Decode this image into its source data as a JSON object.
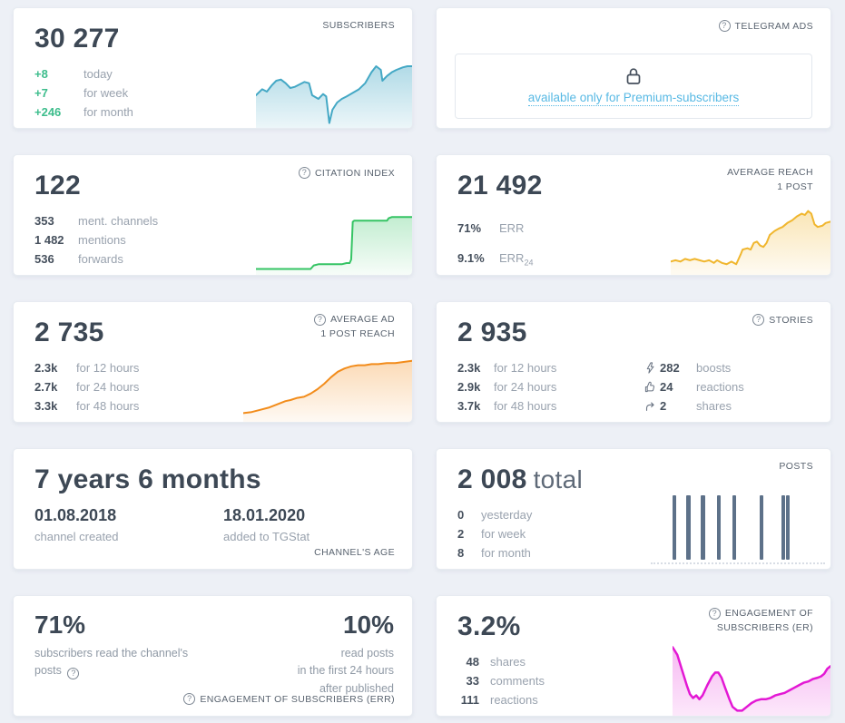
{
  "page": {
    "background": "#edf0f6"
  },
  "colors": {
    "accent_green_text": "#3dbd8c",
    "subscribers_line": "#44a8c5",
    "citation_line": "#35c464",
    "reach_line": "#f0b62e",
    "ad_reach_line": "#f28c1b",
    "er_line": "#e318d4",
    "posts_bar": "#5d7189",
    "link_blue": "#58b9e4"
  },
  "cards": {
    "subscribers": {
      "title": "SUBSCRIBERS",
      "value": "30 277",
      "stats": [
        {
          "value": "+8",
          "label": "today"
        },
        {
          "value": "+7",
          "label": "for week"
        },
        {
          "value": "+246",
          "label": "for month"
        }
      ]
    },
    "telegram_ads": {
      "title": "TELEGRAM ADS",
      "locked_message": "available only for Premium-subscribers"
    },
    "citation_index": {
      "title": "CITATION INDEX",
      "value": "122",
      "stats": [
        {
          "value": "353",
          "label": "ment. channels"
        },
        {
          "value": "1 482",
          "label": "mentions"
        },
        {
          "value": "536",
          "label": "forwards"
        }
      ]
    },
    "average_reach": {
      "title_line1": "AVERAGE REACH",
      "title_line2": "1 POST",
      "value": "21 492",
      "stats": [
        {
          "value": "71%",
          "label": "ERR",
          "label_sub": ""
        },
        {
          "value": "9.1%",
          "label": "ERR",
          "label_sub": "24"
        }
      ]
    },
    "average_ad_reach": {
      "title_line1": "AVERAGE AD",
      "title_line2": "1 POST REACH",
      "value": "2 735",
      "stats": [
        {
          "value": "2.3k",
          "label": "for 12 hours"
        },
        {
          "value": "2.7k",
          "label": "for 24 hours"
        },
        {
          "value": "3.3k",
          "label": "for 48 hours"
        }
      ]
    },
    "stories": {
      "title": "STORIES",
      "value": "2 935",
      "stats": [
        {
          "value": "2.3k",
          "label": "for 12 hours"
        },
        {
          "value": "2.9k",
          "label": "for 24 hours"
        },
        {
          "value": "3.7k",
          "label": "for 48 hours"
        }
      ],
      "engagement": [
        {
          "icon": "boost-icon",
          "value": "282",
          "label": "boosts"
        },
        {
          "icon": "thumbs-up-icon",
          "value": "24",
          "label": "reactions"
        },
        {
          "icon": "share-icon",
          "value": "2",
          "label": "shares"
        }
      ]
    },
    "channel_age": {
      "value": "7 years 6 months",
      "created_date": "01.08.2018",
      "created_label": "channel created",
      "added_date": "18.01.2020",
      "added_label": "added to TGStat",
      "footer": "CHANNEL'S AGE"
    },
    "posts": {
      "title": "POSTS",
      "value": "2 008",
      "value_suffix": "total",
      "stats": [
        {
          "value": "0",
          "label": "yesterday"
        },
        {
          "value": "2",
          "label": "for week"
        },
        {
          "value": "8",
          "label": "for month"
        }
      ]
    },
    "err": {
      "left_value": "71%",
      "left_caption": "subscribers read the channel's posts",
      "right_value": "10%",
      "right_caption_lines": [
        "read posts",
        "in the first 24 hours",
        "after published"
      ],
      "footer": "ENGAGEMENT OF SUBSCRIBERS (ERR)"
    },
    "er": {
      "title_line1": "ENGAGEMENT OF",
      "title_line2": "SUBSCRIBERS (ER)",
      "value": "3.2%",
      "stats": [
        {
          "value": "48",
          "label": "shares"
        },
        {
          "value": "33",
          "label": "comments"
        },
        {
          "value": "111",
          "label": "reactions"
        }
      ]
    }
  },
  "chart_data": [
    {
      "id": "subscribers-trend",
      "type": "area",
      "color": "#44a8c5",
      "stroke_width": 2,
      "fill_opacity_top": 0.42,
      "fill_opacity_bottom": 0.1,
      "ylim": [
        0,
        60
      ],
      "points": [
        [
          0,
          33
        ],
        [
          4,
          28
        ],
        [
          7,
          30
        ],
        [
          10,
          25
        ],
        [
          13,
          21
        ],
        [
          16,
          20
        ],
        [
          19,
          23
        ],
        [
          22,
          27
        ],
        [
          25,
          26
        ],
        [
          28,
          24
        ],
        [
          31,
          22
        ],
        [
          34,
          23
        ],
        [
          36,
          33
        ],
        [
          40,
          36
        ],
        [
          43,
          32
        ],
        [
          45,
          34
        ],
        [
          47,
          56
        ],
        [
          49,
          45
        ],
        [
          52,
          39
        ],
        [
          55,
          36
        ],
        [
          58,
          34
        ],
        [
          62,
          31
        ],
        [
          66,
          28
        ],
        [
          70,
          23
        ],
        [
          74,
          14
        ],
        [
          77,
          9
        ],
        [
          80,
          12
        ],
        [
          81,
          21
        ],
        [
          84,
          17
        ],
        [
          87,
          14
        ],
        [
          90,
          12
        ],
        [
          94,
          10
        ],
        [
          97,
          9
        ],
        [
          100,
          9
        ]
      ]
    },
    {
      "id": "citation-trend",
      "type": "area",
      "color": "#35c464",
      "stroke_width": 2,
      "fill_opacity_top": 0.3,
      "fill_opacity_bottom": 0.04,
      "ylim": [
        0,
        60
      ],
      "points": [
        [
          0,
          55
        ],
        [
          35,
          55
        ],
        [
          37,
          52
        ],
        [
          40,
          51
        ],
        [
          55,
          51
        ],
        [
          58,
          50
        ],
        [
          60,
          50
        ],
        [
          61,
          47
        ],
        [
          62,
          15
        ],
        [
          63,
          14
        ],
        [
          84,
          14
        ],
        [
          85,
          12
        ],
        [
          87,
          11
        ],
        [
          100,
          11
        ]
      ]
    },
    {
      "id": "reach-trend",
      "type": "area",
      "color": "#f0b62e",
      "stroke_width": 2,
      "fill_opacity_top": 0.35,
      "fill_opacity_bottom": 0.06,
      "ylim": [
        0,
        60
      ],
      "points": [
        [
          0,
          50
        ],
        [
          3,
          49
        ],
        [
          6,
          50
        ],
        [
          9,
          48
        ],
        [
          12,
          49
        ],
        [
          15,
          48
        ],
        [
          18,
          49
        ],
        [
          21,
          50
        ],
        [
          24,
          49
        ],
        [
          27,
          51
        ],
        [
          29,
          49
        ],
        [
          32,
          51
        ],
        [
          35,
          52
        ],
        [
          38,
          50
        ],
        [
          41,
          52
        ],
        [
          44,
          44
        ],
        [
          45,
          41
        ],
        [
          48,
          40
        ],
        [
          50,
          41
        ],
        [
          52,
          36
        ],
        [
          54,
          35
        ],
        [
          56,
          38
        ],
        [
          58,
          39
        ],
        [
          60,
          36
        ],
        [
          62,
          30
        ],
        [
          65,
          27
        ],
        [
          68,
          25
        ],
        [
          70,
          24
        ],
        [
          73,
          21
        ],
        [
          76,
          19
        ],
        [
          79,
          16
        ],
        [
          82,
          14
        ],
        [
          84,
          15
        ],
        [
          86,
          12
        ],
        [
          88,
          14
        ],
        [
          90,
          22
        ],
        [
          92,
          24
        ],
        [
          95,
          23
        ],
        [
          97,
          21
        ],
        [
          100,
          20
        ]
      ]
    },
    {
      "id": "ad-reach-trend",
      "type": "area",
      "color": "#f28c1b",
      "stroke_width": 2,
      "fill_opacity_top": 0.32,
      "fill_opacity_bottom": 0.05,
      "ylim": [
        0,
        60
      ],
      "points": [
        [
          0,
          52
        ],
        [
          5,
          51
        ],
        [
          10,
          49
        ],
        [
          15,
          47
        ],
        [
          20,
          44
        ],
        [
          25,
          41
        ],
        [
          28,
          40
        ],
        [
          32,
          38
        ],
        [
          36,
          37
        ],
        [
          40,
          34
        ],
        [
          44,
          30
        ],
        [
          48,
          25
        ],
        [
          52,
          19
        ],
        [
          56,
          14
        ],
        [
          60,
          11
        ],
        [
          64,
          9
        ],
        [
          68,
          8
        ],
        [
          72,
          8
        ],
        [
          76,
          7
        ],
        [
          80,
          7
        ],
        [
          85,
          6
        ],
        [
          90,
          6
        ],
        [
          95,
          5
        ],
        [
          100,
          4
        ]
      ]
    },
    {
      "id": "er-trend",
      "type": "area",
      "color": "#e318d4",
      "stroke_width": 2.5,
      "fill_opacity_top": 0.3,
      "fill_opacity_bottom": 0.1,
      "ylim": [
        0,
        60
      ],
      "points": [
        [
          0,
          6
        ],
        [
          3,
          12
        ],
        [
          6,
          24
        ],
        [
          9,
          36
        ],
        [
          11,
          43
        ],
        [
          13,
          46
        ],
        [
          15,
          44
        ],
        [
          17,
          47
        ],
        [
          19,
          44
        ],
        [
          22,
          36
        ],
        [
          25,
          29
        ],
        [
          27,
          26
        ],
        [
          29,
          26
        ],
        [
          31,
          30
        ],
        [
          33,
          37
        ],
        [
          36,
          47
        ],
        [
          38,
          53
        ],
        [
          41,
          56
        ],
        [
          44,
          56
        ],
        [
          47,
          53
        ],
        [
          50,
          50
        ],
        [
          53,
          48
        ],
        [
          56,
          47
        ],
        [
          59,
          47
        ],
        [
          62,
          46
        ],
        [
          65,
          44
        ],
        [
          68,
          43
        ],
        [
          71,
          42
        ],
        [
          74,
          40
        ],
        [
          77,
          38
        ],
        [
          80,
          36
        ],
        [
          83,
          34
        ],
        [
          86,
          33
        ],
        [
          89,
          31
        ],
        [
          92,
          30
        ],
        [
          94,
          29
        ],
        [
          96,
          27
        ],
        [
          98,
          23
        ],
        [
          100,
          21
        ]
      ]
    },
    {
      "id": "posts-bars",
      "type": "bar",
      "color": "#5d7189",
      "positions_pct": [
        10,
        18.8,
        27.8,
        37.5,
        47.2,
        64.2,
        77.3,
        80.1
      ],
      "bar_width_pct": 2.3,
      "bar_height_pct": 100
    }
  ]
}
